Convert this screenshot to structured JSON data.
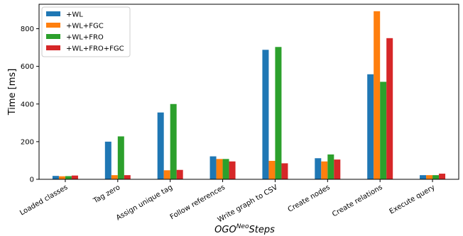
{
  "chart_data": {
    "type": "bar",
    "categories": [
      "Loaded classes",
      "Tag zero",
      "Assign unique tag",
      "Follow references",
      "Write graph to CSV",
      "Create nodes",
      "Create relations",
      "Execute query"
    ],
    "series": [
      {
        "name": "+WL",
        "color": "#1f77b4",
        "values": [
          18,
          200,
          355,
          122,
          688,
          112,
          558,
          22
        ]
      },
      {
        "name": "+WL+FGC",
        "color": "#ff7f0e",
        "values": [
          16,
          22,
          48,
          108,
          98,
          95,
          893,
          22
        ]
      },
      {
        "name": "+WL+FRO",
        "color": "#2ca02c",
        "values": [
          17,
          228,
          400,
          108,
          703,
          132,
          518,
          22
        ]
      },
      {
        "name": "+WL+FRO+FGC",
        "color": "#d62728",
        "values": [
          20,
          22,
          50,
          95,
          85,
          105,
          750,
          30
        ]
      }
    ],
    "xlabel": {
      "prefix": "OGO",
      "superscript": "Neo",
      "suffix": "Steps"
    },
    "ylabel": "Time [ms]",
    "ylim": [
      0,
      930
    ],
    "yticks": [
      0,
      200,
      400,
      600,
      800
    ],
    "legend": "top-left",
    "grid": false
  }
}
